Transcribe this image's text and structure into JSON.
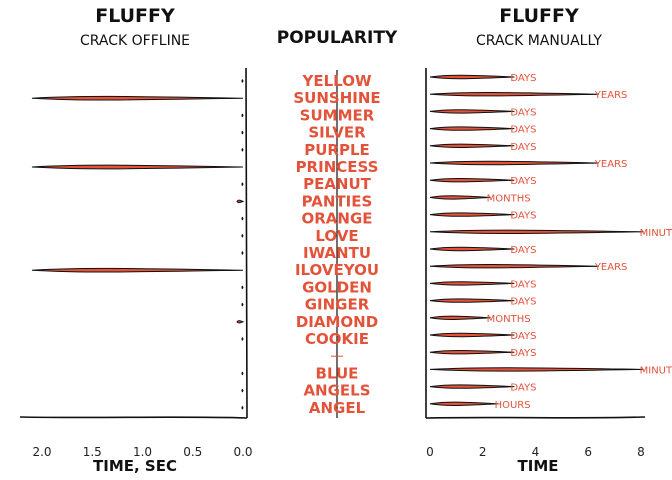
{
  "accent_color": "#e2533a",
  "ink_color": "#111111",
  "chart_data": [
    {
      "panel": "left",
      "type": "bar",
      "orientation": "horizontal",
      "title": "FLUFFY",
      "subtitle": "CRACK OFFLINE",
      "xlabel": "TIME, SEC",
      "x_reversed": true,
      "xlim": [
        0.0,
        2.15
      ],
      "xticks": [
        "2.0",
        "1.5",
        "1.0",
        "0.5",
        "0.0"
      ],
      "categories": [
        "YELLOW",
        "SUNSHINE",
        "SUMMER",
        "SILVER",
        "PURPLE",
        "PRINCESS",
        "PEANUT",
        "PANTIES",
        "ORANGE",
        "LOVE",
        "IWANTU",
        "ILOVEYOU",
        "GOLDEN",
        "GINGER",
        "DIAMOND",
        "COOKIE",
        "",
        "BLUE",
        "ANGELS",
        "ANGEL"
      ],
      "values": [
        0.01,
        2.1,
        0.01,
        0.01,
        0.01,
        2.1,
        0.01,
        0.06,
        0.01,
        0.01,
        0.01,
        2.1,
        0.01,
        0.01,
        0.06,
        0.01,
        0.0,
        0.01,
        0.01,
        0.01
      ]
    },
    {
      "panel": "middle",
      "type": "word_list",
      "title": "POPULARITY",
      "words": [
        "YELLOW",
        "SUNSHINE",
        "SUMMER",
        "SILVER",
        "PURPLE",
        "PRINCESS",
        "PEANUT",
        "PANTIES",
        "ORANGE",
        "LOVE",
        "IWANTU",
        "ILOVEYOU",
        "GOLDEN",
        "GINGER",
        "DIAMOND",
        "COOKIE",
        "",
        "BLUE",
        "ANGELS",
        "ANGEL"
      ]
    },
    {
      "panel": "right",
      "type": "bar",
      "orientation": "horizontal",
      "title": "FLUFFY",
      "subtitle": "CRACK MANUALLY",
      "xlabel": "TIME",
      "xlim": [
        0,
        8.3
      ],
      "xticks": [
        "0",
        "2",
        "4",
        "6",
        "8"
      ],
      "categories": [
        "YELLOW",
        "SUNSHINE",
        "SUMMER",
        "SILVER",
        "PURPLE",
        "PRINCESS",
        "PEANUT",
        "PANTIES",
        "ORANGE",
        "LOVE",
        "IWANTU",
        "ILOVEYOU",
        "GOLDEN",
        "GINGER",
        "DIAMOND",
        "COOKIE",
        "",
        "BLUE",
        "ANGELS",
        "ANGEL"
      ],
      "values": [
        3.2,
        6.4,
        3.2,
        3.2,
        3.2,
        6.4,
        3.2,
        2.3,
        3.2,
        8.1,
        3.2,
        6.4,
        3.2,
        3.2,
        2.3,
        3.2,
        3.2,
        8.1,
        3.2,
        2.6
      ],
      "labels": [
        "DAYS",
        "YEARS",
        "DAYS",
        "DAYS",
        "DAYS",
        "YEARS",
        "DAYS",
        "MONTHS",
        "DAYS",
        "MINUTES",
        "DAYS",
        "YEARS",
        "DAYS",
        "DAYS",
        "MONTHS",
        "DAYS",
        "DAYS",
        "MINUTES",
        "DAYS",
        "HOURS"
      ]
    }
  ]
}
